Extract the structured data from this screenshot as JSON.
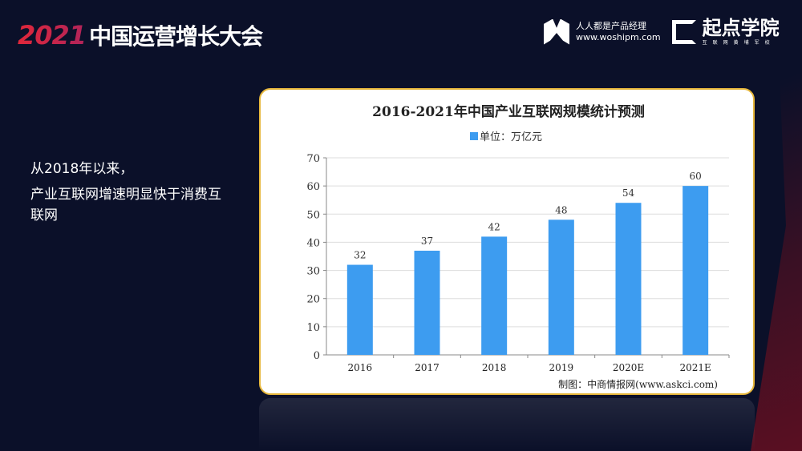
{
  "header": {
    "year": "2021",
    "title": "中国运营增长大会",
    "brand1_name": "人人都是产品经理",
    "brand1_url": "www.woshipm.com",
    "brand2_name": "起点学院",
    "brand2_sub": "互联网黄埔军校"
  },
  "note": {
    "line1": "从2018年以来，",
    "line2": "产业互联网增速明显快于消费互联网"
  },
  "colors": {
    "bar": "#3d9cf0",
    "border": "#e6b63a",
    "background": "#0b1029"
  },
  "chart_data": {
    "type": "bar",
    "title": "2016-2021年中国产业互联网规模统计预测",
    "legend": "单位：万亿元",
    "legend_position": "top",
    "categories": [
      "2016",
      "2017",
      "2018",
      "2019",
      "2020E",
      "2021E"
    ],
    "values": [
      32,
      37,
      42,
      48,
      54,
      60
    ],
    "yticks": [
      "0",
      "10",
      "20",
      "30",
      "40",
      "50",
      "60",
      "70"
    ],
    "ylim": [
      0,
      70
    ],
    "grid": true,
    "source": "制图：中商情报网(www.askci.com)"
  }
}
